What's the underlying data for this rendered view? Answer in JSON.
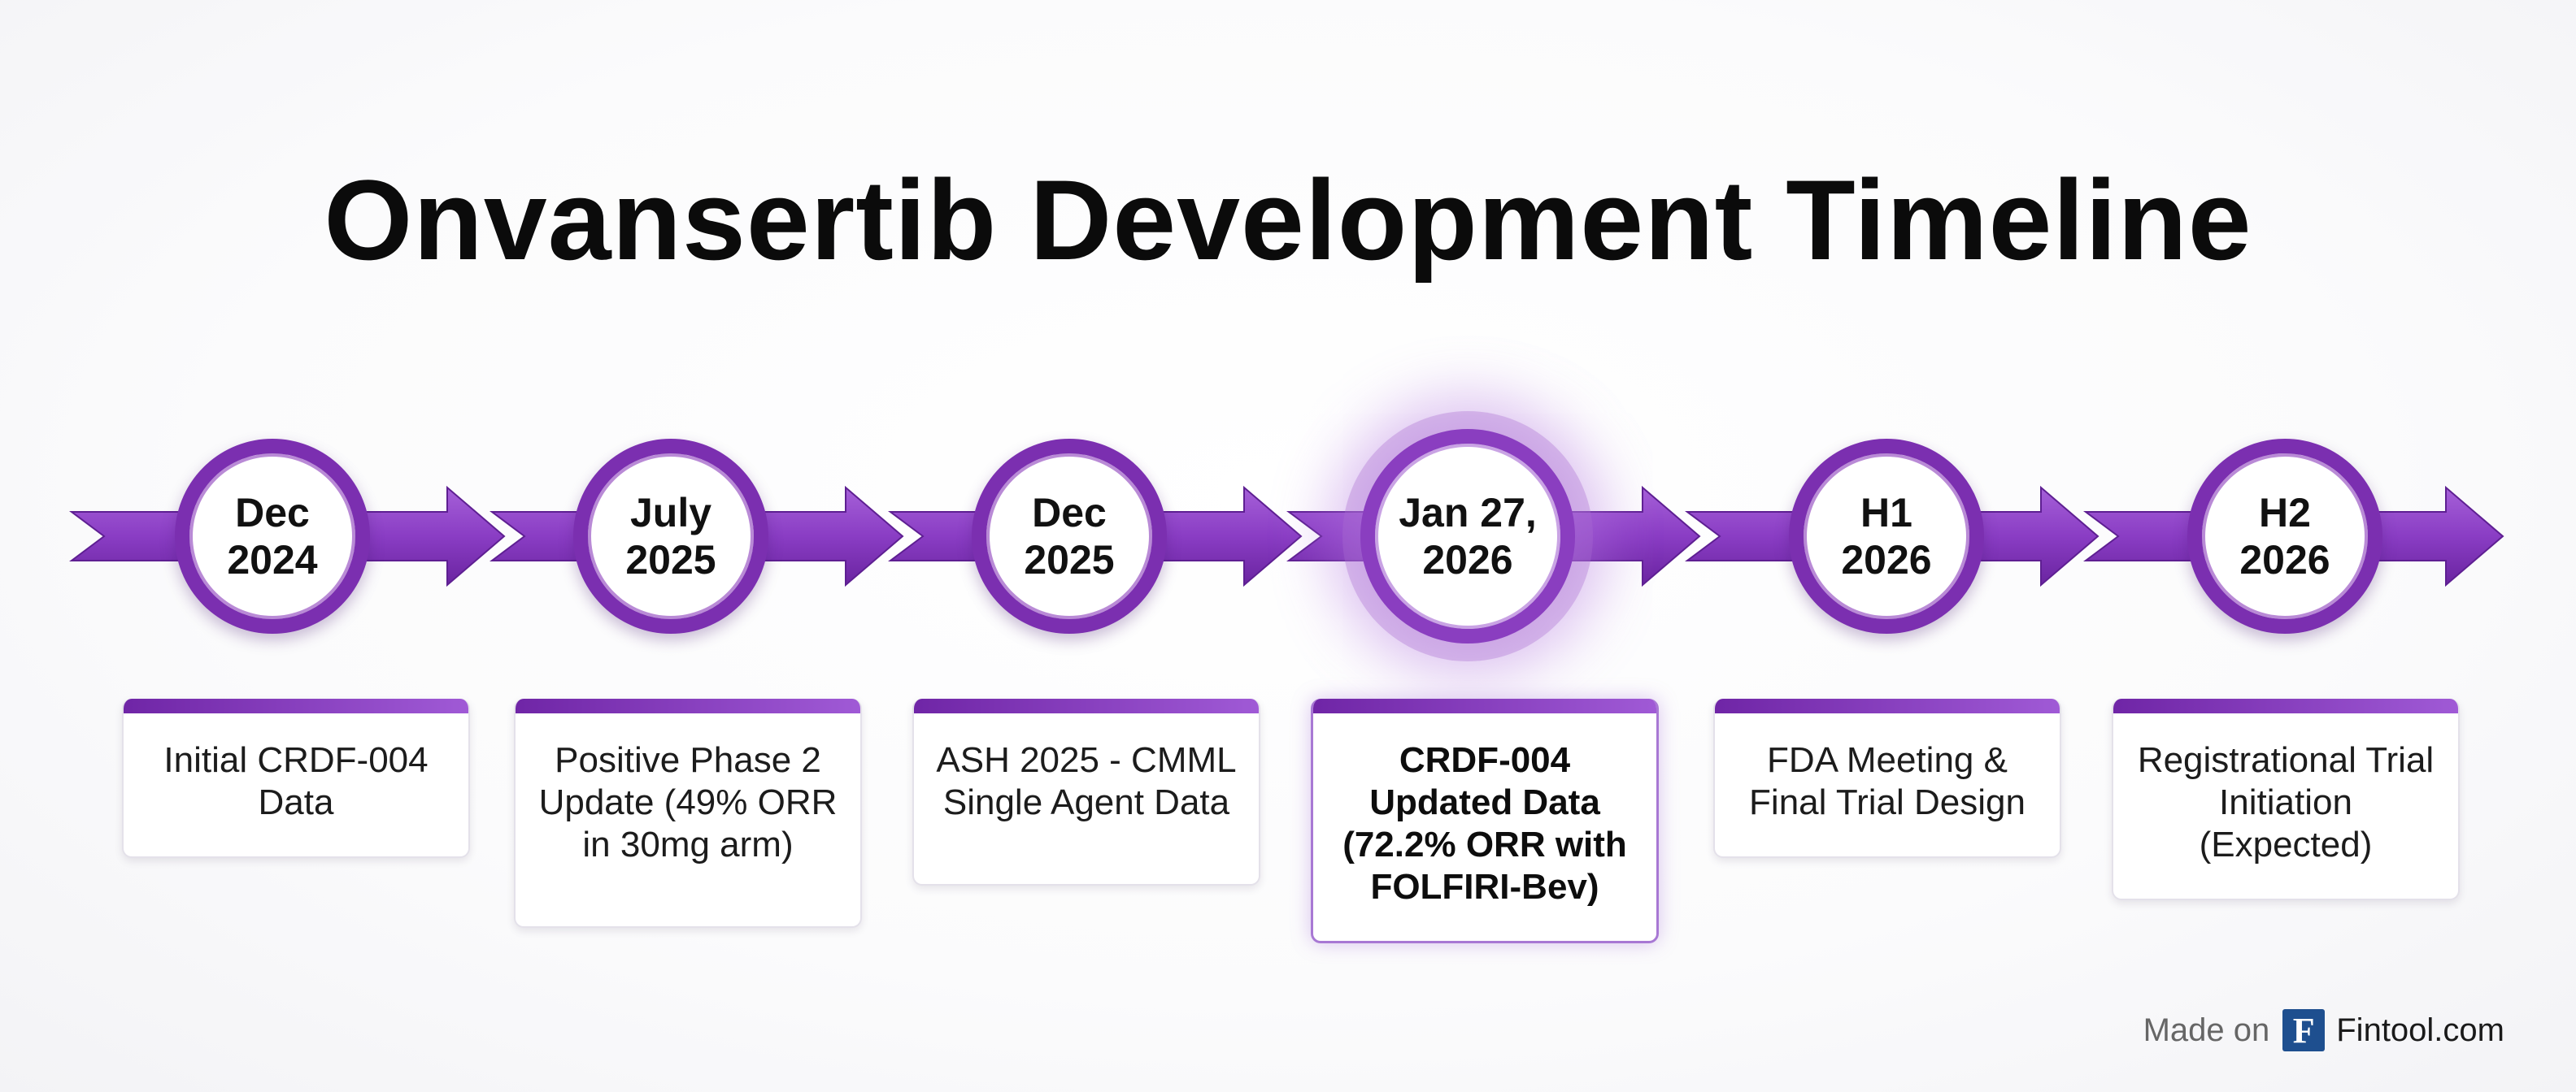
{
  "title": "Onvansertib Development Timeline",
  "colors": {
    "arrow": "#7b2fb0",
    "arrow_light": "#a560d8",
    "card_bar": "#7b2fb0"
  },
  "milestones": [
    {
      "date_line1": "Dec",
      "date_line2": "2024",
      "description": "Initial CRDF-004 Data",
      "current": false
    },
    {
      "date_line1": "July",
      "date_line2": "2025",
      "description": "Positive Phase 2 Update (49% ORR in 30mg arm)",
      "current": false
    },
    {
      "date_line1": "Dec",
      "date_line2": "2025",
      "description": "ASH 2025 - CMML Single Agent Data",
      "current": false
    },
    {
      "date_line1": "Jan 27,",
      "date_line2": "2026",
      "description": "CRDF-004 Updated Data (72.2% ORR with FOLFIRI-Bev)",
      "current": true
    },
    {
      "date_line1": "H1",
      "date_line2": "2026",
      "description": "FDA Meeting & Final Trial Design",
      "current": false
    },
    {
      "date_line1": "H2",
      "date_line2": "2026",
      "description": "Registrational Trial Initiation (Expected)",
      "current": false
    }
  ],
  "footer": {
    "made_on": "Made on",
    "logo_letter": "F",
    "brand": "Fintool.com"
  }
}
